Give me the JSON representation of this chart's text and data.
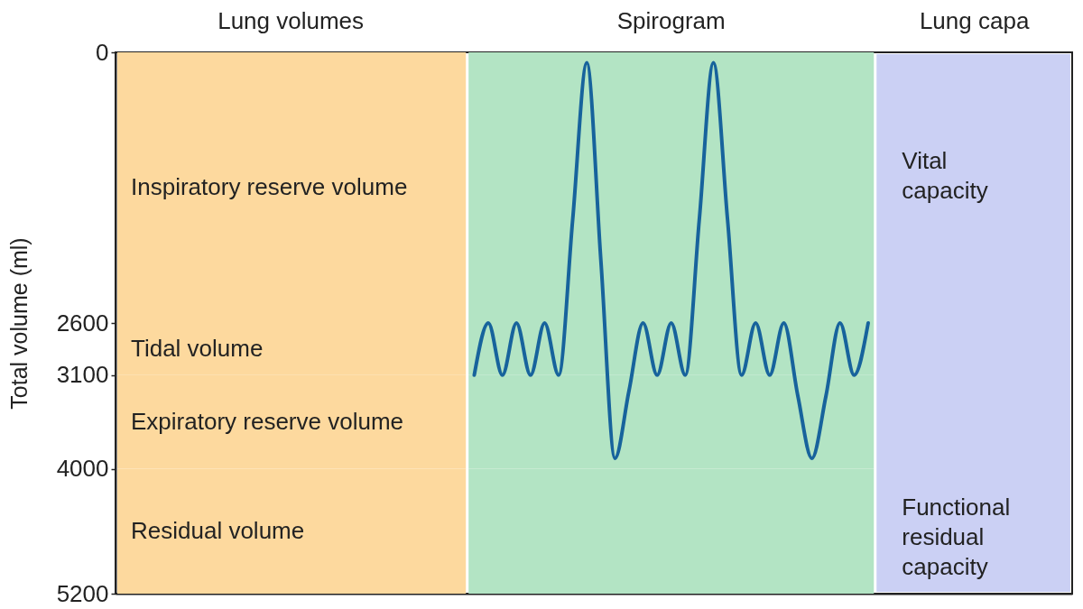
{
  "chart_data": {
    "type": "line",
    "ylabel": "Total volume (ml)",
    "ylim": [
      5200,
      0
    ],
    "yticks": [
      0,
      2600,
      3100,
      4000,
      5200
    ],
    "tick_labels": "y",
    "categories": [
      null,
      null,
      null,
      null,
      null,
      null,
      null,
      null,
      null,
      null,
      null,
      null,
      null,
      null,
      null,
      null,
      null,
      null,
      null,
      null,
      null,
      null,
      null,
      null,
      null,
      null,
      null,
      null,
      null,
      null,
      null,
      null,
      null,
      null,
      null,
      null,
      null,
      null,
      null,
      null,
      null,
      null,
      null,
      null,
      null,
      null,
      null,
      null,
      null,
      null,
      null,
      null,
      null,
      null,
      null,
      null,
      null,
      null,
      null,
      null,
      null,
      null,
      null,
      null,
      null,
      null,
      null,
      null
    ],
    "series": [
      {
        "color": "#17639c",
        "values": [
          null,
          null,
          null,
          null,
          null,
          null,
          null,
          null,
          null,
          null,
          null,
          null,
          null,
          null,
          null,
          null,
          null,
          null,
          null,
          null,
          null,
          null,
          null,
          null,
          null,
          3100,
          2600,
          3100,
          2600,
          3100,
          2600,
          3100,
          1600,
          100,
          2000,
          3900,
          3250,
          2600,
          3100,
          2600,
          3100,
          1600,
          100,
          1600,
          3100,
          2600,
          3100,
          2600,
          3300,
          3900,
          3300,
          2600,
          3100,
          2600,
          null,
          null,
          null,
          null,
          null,
          null,
          null,
          null,
          null,
          null,
          null,
          null,
          null,
          null
        ]
      }
    ],
    "bands": [
      {
        "axis": "y",
        "from": 0,
        "to": 2600,
        "label": "Inspiratory reserve volume",
        "color": "#fdd99e"
      },
      {
        "axis": "y",
        "from": 2600,
        "to": 3100,
        "label": "Tidal volume",
        "color": "#fdd99e"
      },
      {
        "axis": "y",
        "from": 3100,
        "to": 4000,
        "label": "Expiratory reserve volume",
        "color": "#fdd99e"
      },
      {
        "axis": "y",
        "from": 4000,
        "to": 5200,
        "label": "Residual volume",
        "color": "#fdd99e"
      }
    ],
    "annotations": [
      "Lung volumes",
      "Spirogram",
      "Lung capa",
      "Vital capacity",
      "Functional residual capacity"
    ]
  }
}
